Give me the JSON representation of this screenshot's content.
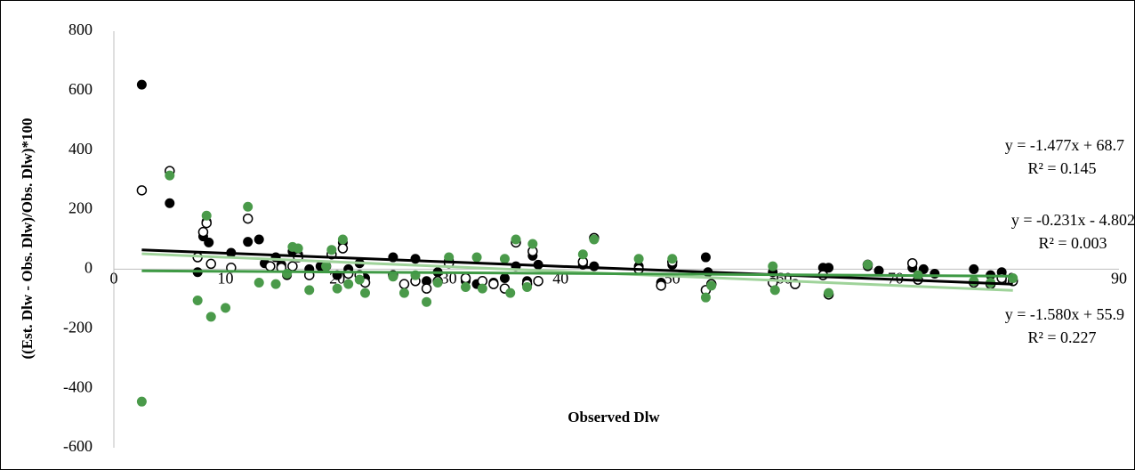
{
  "chart_data": {
    "type": "scatter",
    "x_label": "Observed Dlw",
    "y_label": "((Est. Dlw - Obs. Dlw)/Obs. Dlw)*100",
    "xlim": [
      0,
      90
    ],
    "xticks": [
      0,
      10,
      20,
      30,
      40,
      50,
      60,
      70,
      80,
      90
    ],
    "ylim": [
      -600,
      800
    ],
    "yticks": [
      -600,
      -400,
      -200,
      0,
      200,
      400,
      600,
      800
    ],
    "grid": false,
    "series": [
      {
        "color": "#000000",
        "hollow": false,
        "trend_color": "#000000",
        "x": [
          2.5,
          5,
          7.5,
          8,
          8.3,
          8.5,
          10.5,
          12,
          13,
          13.5,
          14.5,
          15,
          15.5,
          16,
          16.5,
          17.5,
          18.5,
          20,
          20.5,
          21,
          22,
          22.5,
          25,
          27,
          28,
          29,
          30,
          31.5,
          32.5,
          34,
          35,
          36,
          37,
          37.5,
          38,
          42,
          43,
          47,
          49,
          50,
          53,
          53.2,
          59,
          63.5,
          64,
          67.5,
          68.5,
          71.5,
          72.5,
          73.5,
          77,
          78.5,
          79.5,
          80.5
        ],
        "values": [
          620,
          222,
          -10,
          110,
          160,
          90,
          55,
          92,
          100,
          20,
          40,
          15,
          -20,
          60,
          50,
          0,
          10,
          -20,
          90,
          0,
          20,
          -30,
          40,
          35,
          -40,
          -10,
          30,
          -40,
          -50,
          -45,
          -30,
          10,
          -40,
          45,
          15,
          15,
          10,
          10,
          -45,
          15,
          40,
          -10,
          -10,
          5,
          5,
          10,
          -5,
          5,
          0,
          -15,
          0,
          -20,
          -10,
          -35
        ],
        "trendline": {
          "slope": -1.477,
          "intercept": 68.7,
          "equation": "y = -1.477x + 68.7",
          "r2": "R² = 0.145"
        }
      },
      {
        "color": "#000000",
        "hollow": true,
        "trend_color": "#9fd39a",
        "x": [
          2.5,
          5,
          7.5,
          8,
          8.3,
          8.7,
          10.5,
          12,
          14,
          15,
          16,
          16.5,
          17.5,
          19,
          19.5,
          20.5,
          21,
          22,
          22.5,
          25,
          26,
          27,
          28,
          29,
          30,
          31.5,
          33,
          34,
          35,
          36,
          37,
          37.5,
          38,
          42,
          43,
          47,
          49,
          50,
          53,
          53.5,
          59,
          61,
          63.5,
          64,
          67.5,
          71.5,
          72,
          77,
          78.5,
          79.5,
          80.5
        ],
        "values": [
          265,
          330,
          40,
          125,
          155,
          18,
          5,
          170,
          10,
          5,
          10,
          40,
          -20,
          10,
          50,
          70,
          -15,
          -20,
          -45,
          -20,
          -50,
          -40,
          -65,
          -40,
          20,
          -30,
          -40,
          -50,
          -65,
          90,
          -50,
          60,
          -40,
          25,
          105,
          0,
          -55,
          25,
          -70,
          -50,
          -45,
          -50,
          -20,
          -85,
          15,
          20,
          -35,
          -45,
          -50,
          -30,
          -40
        ],
        "trendline": {
          "slope": -1.58,
          "intercept": 55.9,
          "equation": "y = -1.580x + 55.9",
          "r2": "R² = 0.227"
        }
      },
      {
        "color": "#4a9a4a",
        "hollow": false,
        "trend_color": "#3f9a45",
        "x": [
          2.5,
          5,
          7.5,
          8.3,
          8.7,
          10,
          12,
          13,
          14.5,
          15.5,
          16,
          16.5,
          17.5,
          19,
          19.5,
          20.5,
          20,
          21,
          22,
          22.5,
          25,
          26,
          27,
          28,
          29,
          30,
          31.5,
          32.5,
          33,
          35,
          35.5,
          36,
          37,
          37.5,
          42,
          43,
          47,
          50,
          53,
          53.5,
          59,
          59.2,
          64,
          67.5,
          72,
          77,
          78.5,
          80.5
        ],
        "values": [
          -445,
          315,
          -105,
          180,
          -160,
          -130,
          210,
          -45,
          -50,
          -15,
          75,
          70,
          -70,
          10,
          65,
          100,
          -65,
          -50,
          -35,
          -80,
          -25,
          -80,
          -20,
          -110,
          -45,
          40,
          -60,
          40,
          -65,
          35,
          -80,
          100,
          -60,
          85,
          50,
          100,
          35,
          35,
          -95,
          -55,
          10,
          -70,
          -80,
          15,
          -20,
          -40,
          -45,
          -30
        ],
        "trendline": {
          "slope": -0.231,
          "intercept": -4.802,
          "equation": "y = -0.231x - 4.802",
          "r2": "R² = 0.003"
        }
      }
    ]
  }
}
